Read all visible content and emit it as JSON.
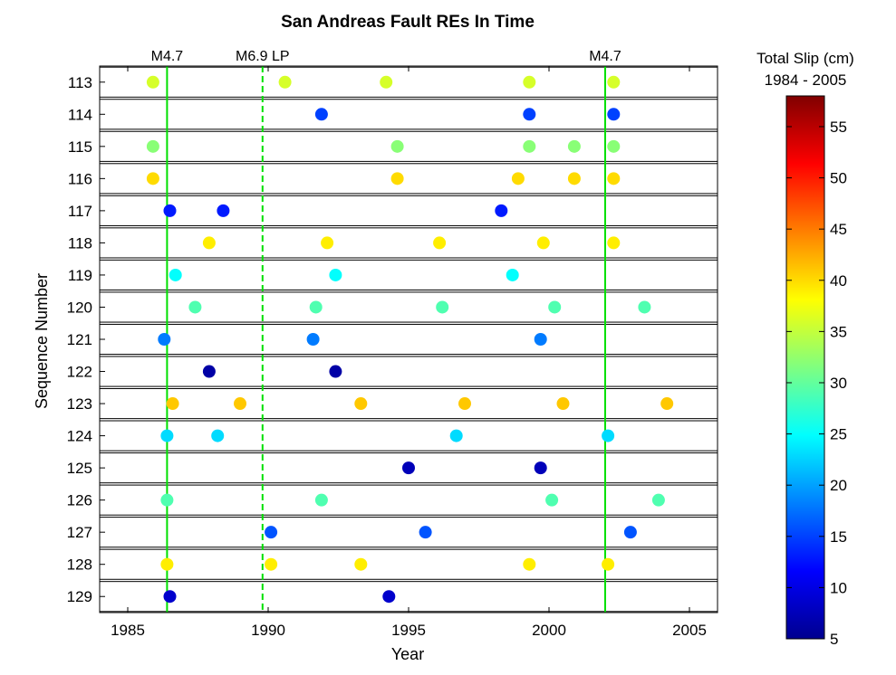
{
  "chart_data": {
    "type": "scatter",
    "title": "San Andreas Fault REs In Time",
    "xlabel": "Year",
    "ylabel": "Sequence Number",
    "xlim": [
      1984,
      2006
    ],
    "x_ticks": [
      1985,
      1990,
      1995,
      2000,
      2005
    ],
    "x_tick_labels": [
      "1985",
      "1990",
      "1995",
      "2000",
      "2005"
    ],
    "sequences": [
      "113",
      "114",
      "115",
      "116",
      "117",
      "118",
      "119",
      "120",
      "121",
      "122",
      "123",
      "124",
      "125",
      "126",
      "127",
      "128",
      "129"
    ],
    "events": [
      {
        "label": "M4.7",
        "year": 1986.4,
        "style": "solid"
      },
      {
        "label": "M6.9 LP",
        "year": 1989.8,
        "style": "dashed"
      },
      {
        "label": "M4.7",
        "year": 2002.0,
        "style": "solid"
      }
    ],
    "event_color": "#00e000",
    "colorbar": {
      "title_line1": "Total Slip (cm)",
      "title_line2": "1984 - 2005",
      "range": [
        5,
        58
      ],
      "ticks": [
        5,
        10,
        15,
        20,
        25,
        30,
        35,
        40,
        45,
        50,
        55
      ],
      "tick_labels": [
        "5",
        "10",
        "15",
        "20",
        "25",
        "30",
        "35",
        "40",
        "45",
        "50",
        "55"
      ],
      "colormap": "jet"
    },
    "series": [
      {
        "sequence": "113",
        "slip": 36,
        "x": [
          1985.9,
          1990.6,
          1994.2,
          1999.3,
          2002.3
        ]
      },
      {
        "sequence": "114",
        "slip": 15,
        "x": [
          1991.9,
          1999.3,
          2002.3
        ]
      },
      {
        "sequence": "115",
        "slip": 32,
        "x": [
          1985.9,
          1994.6,
          1999.3,
          2000.9,
          2002.3
        ]
      },
      {
        "sequence": "116",
        "slip": 40,
        "x": [
          1985.9,
          1994.6,
          1998.9,
          2000.9,
          2002.3
        ]
      },
      {
        "sequence": "117",
        "slip": 13,
        "x": [
          1986.5,
          1988.4,
          1998.3
        ]
      },
      {
        "sequence": "118",
        "slip": 39,
        "x": [
          1987.9,
          1992.1,
          1996.1,
          1999.8,
          2002.3
        ]
      },
      {
        "sequence": "119",
        "slip": 25,
        "x": [
          1986.7,
          1992.4,
          1998.7
        ]
      },
      {
        "sequence": "120",
        "slip": 29,
        "x": [
          1987.4,
          1991.7,
          1996.2,
          2000.2,
          2003.4
        ]
      },
      {
        "sequence": "121",
        "slip": 18,
        "x": [
          1986.3,
          1991.6,
          1999.7
        ]
      },
      {
        "sequence": "122",
        "slip": 7,
        "x": [
          1987.9,
          1992.4
        ]
      },
      {
        "sequence": "123",
        "slip": 41,
        "x": [
          1986.6,
          1989.0,
          1993.3,
          1997.0,
          2000.5,
          2004.2
        ]
      },
      {
        "sequence": "124",
        "slip": 23,
        "x": [
          1986.4,
          1988.2,
          1996.7,
          2002.1
        ]
      },
      {
        "sequence": "125",
        "slip": 8,
        "x": [
          1995.0,
          1999.7
        ]
      },
      {
        "sequence": "126",
        "slip": 29,
        "x": [
          1986.4,
          1991.9,
          2000.1,
          2003.9
        ]
      },
      {
        "sequence": "127",
        "slip": 16,
        "x": [
          1990.1,
          1995.6,
          2002.9
        ]
      },
      {
        "sequence": "128",
        "slip": 39,
        "x": [
          1986.4,
          1990.1,
          1993.3,
          1999.3,
          2002.1
        ]
      },
      {
        "sequence": "129",
        "slip": 9,
        "x": [
          1986.5,
          1994.3
        ]
      }
    ]
  }
}
